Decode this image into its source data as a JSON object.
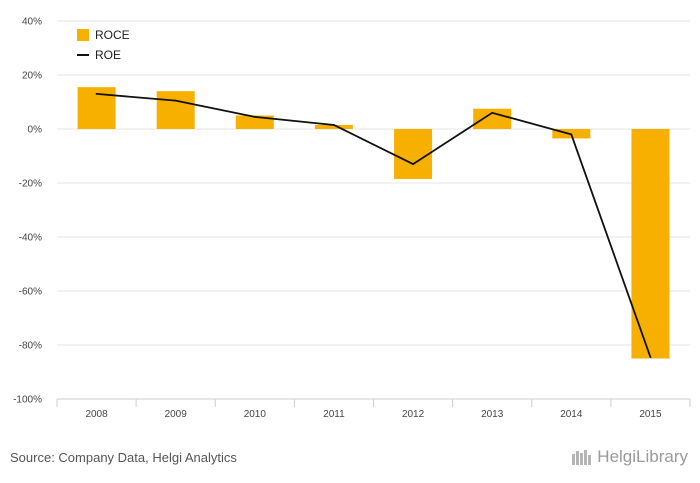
{
  "chart_data": {
    "type": "bar",
    "categories": [
      "2008",
      "2009",
      "2010",
      "2011",
      "2012",
      "2013",
      "2014",
      "2015"
    ],
    "series": [
      {
        "name": "ROCE",
        "type": "bar",
        "color": "#f7b000",
        "values": [
          15.5,
          14,
          5,
          1.5,
          -18.5,
          7.5,
          -3.5,
          -85
        ]
      },
      {
        "name": "ROE",
        "type": "line",
        "color": "#111111",
        "values": [
          13,
          10.5,
          4.5,
          1.5,
          -13,
          6,
          -2,
          -84.5
        ]
      }
    ],
    "ylim": [
      -100,
      40
    ],
    "yticks": [
      40,
      20,
      0,
      -20,
      -40,
      -60,
      -80,
      -100
    ],
    "ytick_labels": [
      "40%",
      "20%",
      "0%",
      "-20%",
      "-40%",
      "-60%",
      "-80%",
      "-100%"
    ],
    "grid": true,
    "legend": "top-left"
  },
  "footer": {
    "source": "Source: Company Data, Helgi Analytics",
    "brand": "HelgiLibrary",
    "brand_icon": "library-logo-icon"
  }
}
